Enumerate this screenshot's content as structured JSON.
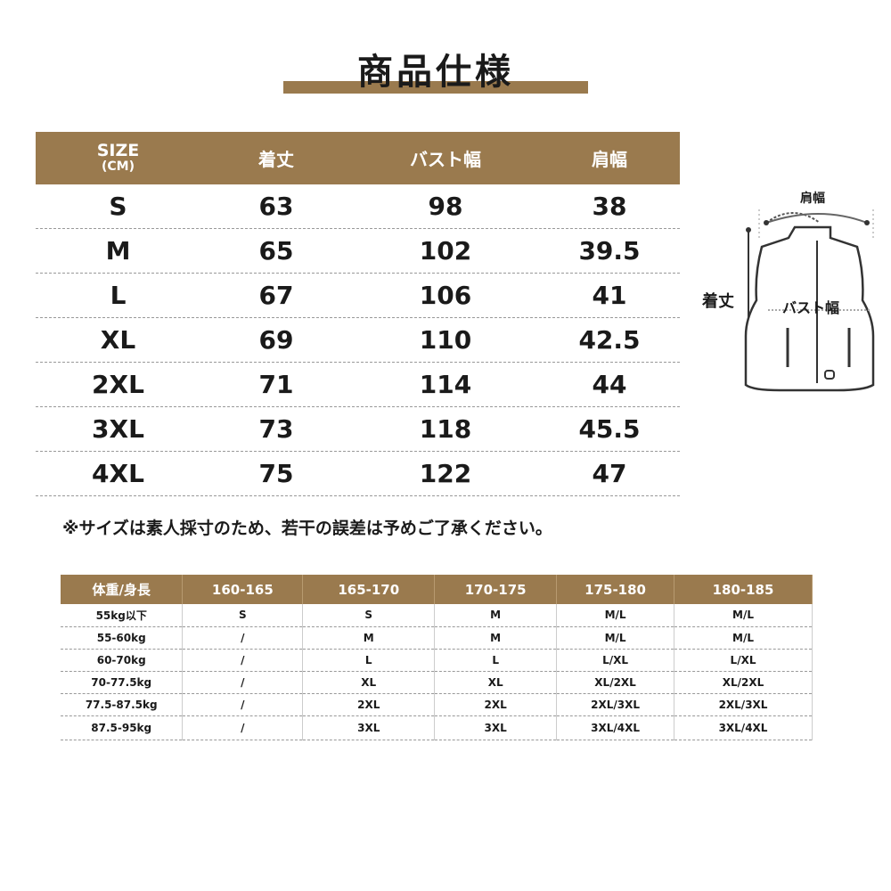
{
  "title": "商品仕様",
  "size_table": {
    "headers": {
      "size": "SIZE",
      "unit": "(CM)",
      "length": "着丈",
      "bust": "バスト幅",
      "shoulder": "肩幅"
    },
    "rows": [
      {
        "size": "S",
        "length": "63",
        "bust": "98",
        "shoulder": "38"
      },
      {
        "size": "M",
        "length": "65",
        "bust": "102",
        "shoulder": "39.5"
      },
      {
        "size": "L",
        "length": "67",
        "bust": "106",
        "shoulder": "41"
      },
      {
        "size": "XL",
        "length": "69",
        "bust": "110",
        "shoulder": "42.5"
      },
      {
        "size": "2XL",
        "length": "71",
        "bust": "114",
        "shoulder": "44"
      },
      {
        "size": "3XL",
        "length": "73",
        "bust": "118",
        "shoulder": "45.5"
      },
      {
        "size": "4XL",
        "length": "75",
        "bust": "122",
        "shoulder": "47"
      }
    ]
  },
  "diagram": {
    "shoulder": "肩幅",
    "length": "着丈",
    "bust": "バスト幅"
  },
  "note": "※サイズは素人採寸のため、若干の誤差は予めご了承ください。",
  "fit_table": {
    "headers": [
      "体重/身長",
      "160-165",
      "165-170",
      "170-175",
      "175-180",
      "180-185"
    ],
    "rows": [
      [
        "55kg以下",
        "S",
        "S",
        "M",
        "M/L",
        "M/L"
      ],
      [
        "55-60kg",
        "/",
        "M",
        "M",
        "M/L",
        "M/L"
      ],
      [
        "60-70kg",
        "/",
        "L",
        "L",
        "L/XL",
        "L/XL"
      ],
      [
        "70-77.5kg",
        "/",
        "XL",
        "XL",
        "XL/2XL",
        "XL/2XL"
      ],
      [
        "77.5-87.5kg",
        "/",
        "2XL",
        "2XL",
        "2XL/3XL",
        "2XL/3XL"
      ],
      [
        "87.5-95kg",
        "/",
        "3XL",
        "3XL",
        "3XL/4XL",
        "3XL/4XL"
      ]
    ]
  },
  "colors": {
    "header": "#9a7a4e"
  }
}
